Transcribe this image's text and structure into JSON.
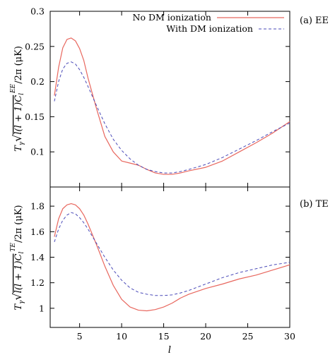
{
  "chart_data": [
    {
      "id": "ee",
      "type": "line",
      "panel_label": "(a) EE",
      "ylabel": "T_γ √( l(l+1) C_l^{EE} / 2π ) (μK)",
      "ylabel_parts": {
        "main": "T",
        "sub": "γ",
        "rad_pre": "l(l + 1)C",
        "rad_sub": "l",
        "rad_sup": "EE",
        "rad_post": "/2π",
        "unit": " (μK)"
      },
      "xlim": [
        1.5,
        30
      ],
      "ylim": [
        0.05,
        0.3
      ],
      "x_ticks": [
        5,
        10,
        15,
        20,
        25,
        30
      ],
      "y_ticks": [
        0.1,
        0.15,
        0.2,
        0.25,
        0.3
      ],
      "y_tick_labels": [
        "0.1",
        "0.15",
        "0.2",
        "0.25",
        "0.3"
      ],
      "legend": {
        "placement": "top-right"
      },
      "series": [
        {
          "name": "No DM ionization",
          "color": "#e8675e",
          "dash": "solid",
          "x": [
            2,
            2.5,
            3,
            3.5,
            4,
            4.5,
            5,
            5.5,
            6,
            7,
            8,
            9,
            10,
            11,
            12,
            13,
            14,
            15,
            16,
            17,
            18,
            20,
            22,
            24,
            26,
            28,
            30
          ],
          "y": [
            0.18,
            0.22,
            0.248,
            0.26,
            0.262,
            0.258,
            0.247,
            0.23,
            0.205,
            0.162,
            0.122,
            0.1,
            0.087,
            0.084,
            0.081,
            0.075,
            0.07,
            0.068,
            0.068,
            0.07,
            0.073,
            0.078,
            0.087,
            0.1,
            0.113,
            0.127,
            0.143
          ]
        },
        {
          "name": "With DM ionization",
          "color": "#4a4ab8",
          "dash": "dashed",
          "x": [
            2,
            2.5,
            3,
            3.5,
            4,
            4.5,
            5,
            5.5,
            6,
            7,
            8,
            9,
            10,
            11,
            12,
            13,
            14,
            15,
            16,
            17,
            18,
            20,
            22,
            24,
            26,
            28,
            30
          ],
          "y": [
            0.172,
            0.2,
            0.218,
            0.226,
            0.228,
            0.225,
            0.217,
            0.206,
            0.193,
            0.166,
            0.14,
            0.118,
            0.102,
            0.09,
            0.081,
            0.075,
            0.072,
            0.07,
            0.07,
            0.072,
            0.075,
            0.082,
            0.092,
            0.104,
            0.116,
            0.129,
            0.141
          ]
        }
      ]
    },
    {
      "id": "te",
      "type": "line",
      "panel_label": "(b) TE",
      "ylabel": "T_γ √( l(l+1) C_l^{TE} / 2π ) (μK)",
      "ylabel_parts": {
        "main": "T",
        "sub": "γ",
        "rad_pre": "l(l + 1)C",
        "rad_sub": "l",
        "rad_sup": "TE",
        "rad_post": "/2π",
        "unit": " (μK)"
      },
      "xlabel": "l",
      "xlim": [
        1.5,
        30
      ],
      "ylim": [
        0.85,
        1.95
      ],
      "x_ticks": [
        5,
        10,
        15,
        20,
        25,
        30
      ],
      "x_tick_labels": [
        "5",
        "10",
        "15",
        "20",
        "25",
        "30"
      ],
      "y_ticks": [
        1.0,
        1.2,
        1.4,
        1.6,
        1.8
      ],
      "y_tick_labels": [
        "1",
        "1.2",
        "1.4",
        "1.6",
        "1.8"
      ],
      "series": [
        {
          "name": "No DM ionization",
          "color": "#e8675e",
          "dash": "solid",
          "x": [
            2,
            2.5,
            3,
            3.5,
            4,
            4.5,
            5,
            5.5,
            6,
            7,
            8,
            9,
            10,
            11,
            12,
            13,
            14,
            15,
            16,
            17,
            18,
            20,
            22,
            24,
            26,
            28,
            30
          ],
          "y": [
            1.56,
            1.7,
            1.78,
            1.81,
            1.82,
            1.81,
            1.78,
            1.73,
            1.66,
            1.5,
            1.33,
            1.18,
            1.07,
            1.01,
            0.985,
            0.98,
            0.99,
            1.01,
            1.04,
            1.08,
            1.11,
            1.155,
            1.19,
            1.23,
            1.26,
            1.3,
            1.34
          ]
        },
        {
          "name": "With DM ionization",
          "color": "#4a4ab8",
          "dash": "dashed",
          "x": [
            2,
            2.5,
            3,
            3.5,
            4,
            4.5,
            5,
            5.5,
            6,
            7,
            8,
            9,
            10,
            11,
            12,
            13,
            14,
            15,
            16,
            17,
            18,
            20,
            22,
            24,
            26,
            28,
            30
          ],
          "y": [
            1.52,
            1.62,
            1.69,
            1.73,
            1.75,
            1.74,
            1.71,
            1.67,
            1.62,
            1.51,
            1.4,
            1.3,
            1.22,
            1.16,
            1.125,
            1.11,
            1.1,
            1.1,
            1.105,
            1.12,
            1.14,
            1.19,
            1.24,
            1.28,
            1.31,
            1.34,
            1.36
          ]
        }
      ]
    }
  ]
}
